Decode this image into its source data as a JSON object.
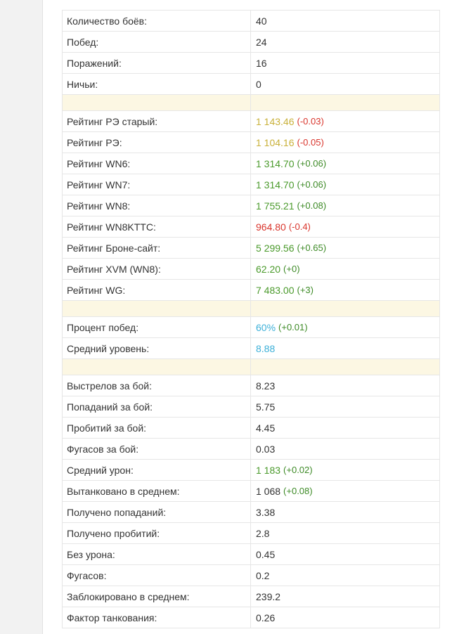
{
  "table": {
    "sections": [
      {
        "rows": [
          {
            "label": "Количество боёв:",
            "value": "40"
          },
          {
            "label": "Побед:",
            "value": "24"
          },
          {
            "label": "Поражений:",
            "value": "16"
          },
          {
            "label": "Ничьи:",
            "value": "0"
          }
        ]
      },
      {
        "rows": [
          {
            "label": "Рейтинг РЭ старый:",
            "value": "1 143.46",
            "value_color": "#c9b13a",
            "change": "(-0.03)",
            "change_color": "#d9342b"
          },
          {
            "label": "Рейтинг РЭ:",
            "value": "1 104.16",
            "value_color": "#c9b13a",
            "change": "(-0.05)",
            "change_color": "#d9342b"
          },
          {
            "label": "Рейтинг WN6:",
            "value": "1 314.70",
            "value_color": "#4a9a2b",
            "change": "(+0.06)",
            "change_color": "#3d8a26"
          },
          {
            "label": "Рейтинг WN7:",
            "value": "1 314.70",
            "value_color": "#4a9a2b",
            "change": "(+0.06)",
            "change_color": "#3d8a26"
          },
          {
            "label": "Рейтинг WN8:",
            "value": "1 755.21",
            "value_color": "#4a9a2b",
            "change": "(+0.08)",
            "change_color": "#3d8a26"
          },
          {
            "label": "Рейтинг WN8KTTC:",
            "value": "964.80",
            "value_color": "#d9342b",
            "change": "(-0.4)",
            "change_color": "#d9342b"
          },
          {
            "label": "Рейтинг Броне-сайт:",
            "value": "5 299.56",
            "value_color": "#4a9a2b",
            "change": "(+0.65)",
            "change_color": "#3d8a26"
          },
          {
            "label": "Рейтинг XVM (WN8):",
            "value": "62.20",
            "value_color": "#4a9a2b",
            "change": "(+0)",
            "change_color": "#3d8a26"
          },
          {
            "label": "Рейтинг WG:",
            "value": "7 483.00",
            "value_color": "#4a9a2b",
            "change": "(+3)",
            "change_color": "#3d8a26"
          }
        ]
      },
      {
        "rows": [
          {
            "label": "Процент побед:",
            "value": "60%",
            "value_color": "#3cb0d8",
            "change": "(+0.01)",
            "change_color": "#3d8a26"
          },
          {
            "label": "Средний уровень:",
            "value": "8.88",
            "value_color": "#3cb0d8"
          }
        ]
      },
      {
        "rows": [
          {
            "label": "Выстрелов за бой:",
            "value": "8.23"
          },
          {
            "label": "Попаданий за бой:",
            "value": "5.75"
          },
          {
            "label": "Пробитий за бой:",
            "value": "4.45"
          },
          {
            "label": "Фугасов за бой:",
            "value": "0.03"
          },
          {
            "label": "Средний урон:",
            "value": "1 183",
            "value_color": "#4a9a2b",
            "change": "(+0.02)",
            "change_color": "#3d8a26"
          },
          {
            "label": "Вытанковано в среднем:",
            "value": "1 068",
            "change": "(+0.08)",
            "change_color": "#3d8a26"
          },
          {
            "label": "Получено попаданий:",
            "value": "3.38"
          },
          {
            "label": "Получено пробитий:",
            "value": "2.8"
          },
          {
            "label": "Без урона:",
            "value": "0.45"
          },
          {
            "label": "Фугасов:",
            "value": "0.2"
          },
          {
            "label": "Заблокировано в среднем:",
            "value": "239.2"
          },
          {
            "label": "Фактор танкования:",
            "value": "0.26"
          }
        ]
      }
    ]
  }
}
